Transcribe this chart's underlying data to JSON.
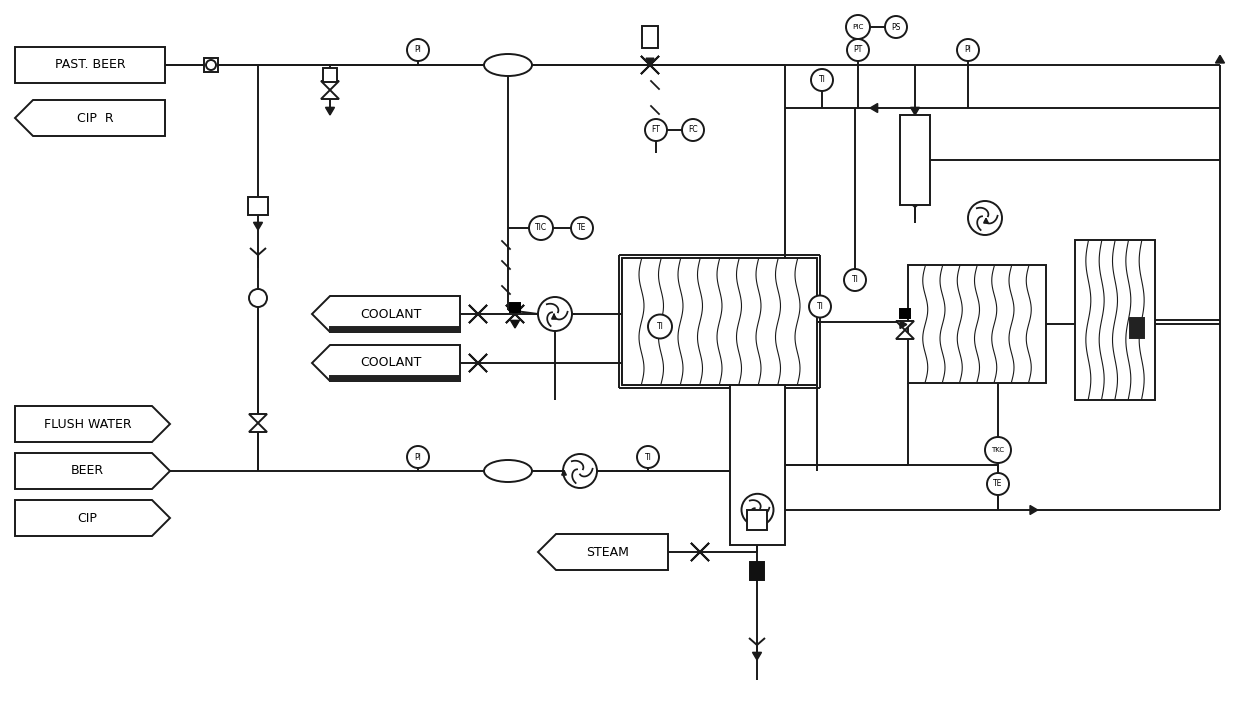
{
  "bg_color": "#ffffff",
  "line_color": "#1a1a1a",
  "line_width": 1.4,
  "labels": {
    "past_beer": "PAST. BEER",
    "cip_r": "CIP  R",
    "flush_water": "FLUSH WATER",
    "beer": "BEER",
    "cip": "CIP",
    "coolant1": "COOLANT",
    "coolant2": "COOLANT",
    "steam": "STEAM"
  },
  "figsize": [
    12.48,
    7.15
  ],
  "dpi": 100
}
